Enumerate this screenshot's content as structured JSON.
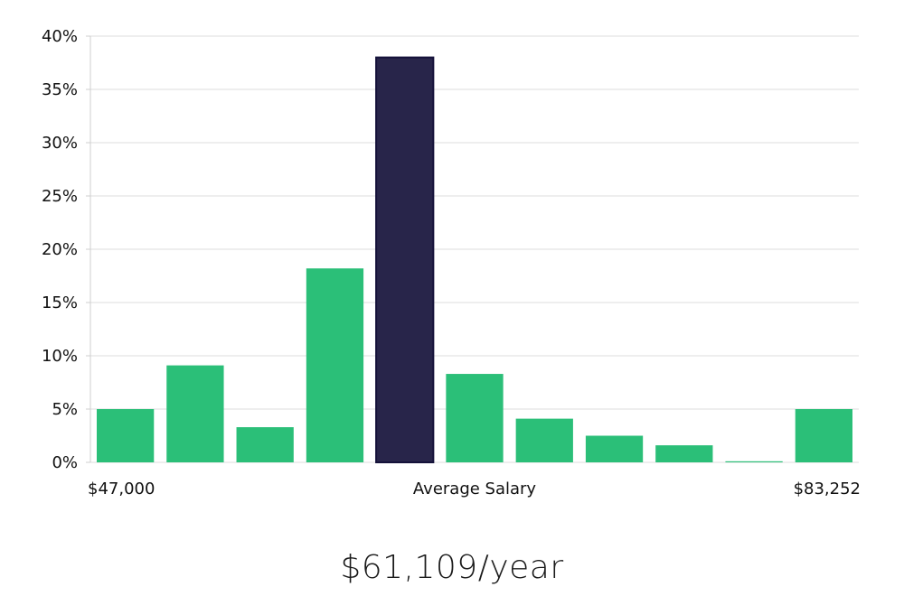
{
  "chart_data": {
    "type": "bar",
    "title": "",
    "xlabel": "Average Salary",
    "ylabel": "",
    "ylim": [
      0,
      40
    ],
    "yticks": [
      {
        "value": 0,
        "label": "0%"
      },
      {
        "value": 5,
        "label": "5%"
      },
      {
        "value": 10,
        "label": "10%"
      },
      {
        "value": 15,
        "label": "15%"
      },
      {
        "value": 20,
        "label": "20%"
      },
      {
        "value": 25,
        "label": "25%"
      },
      {
        "value": 30,
        "label": "30%"
      },
      {
        "value": 35,
        "label": "35%"
      },
      {
        "value": 40,
        "label": "40%"
      }
    ],
    "grid": true,
    "x_start_label": "$47,000",
    "x_center_label": "Average Salary",
    "x_end_label": "$83,252",
    "values": [
      5.0,
      9.1,
      3.3,
      18.2,
      38.0,
      8.3,
      4.1,
      2.5,
      1.6,
      0.1,
      5.0
    ],
    "highlight_index": 4,
    "bar_color": "#2bbf78",
    "highlight_color": "#28254a",
    "highlight_stroke": "#15123a",
    "grid_color": "#dddddd"
  },
  "summary": {
    "average_salary": "$61,109/year"
  }
}
